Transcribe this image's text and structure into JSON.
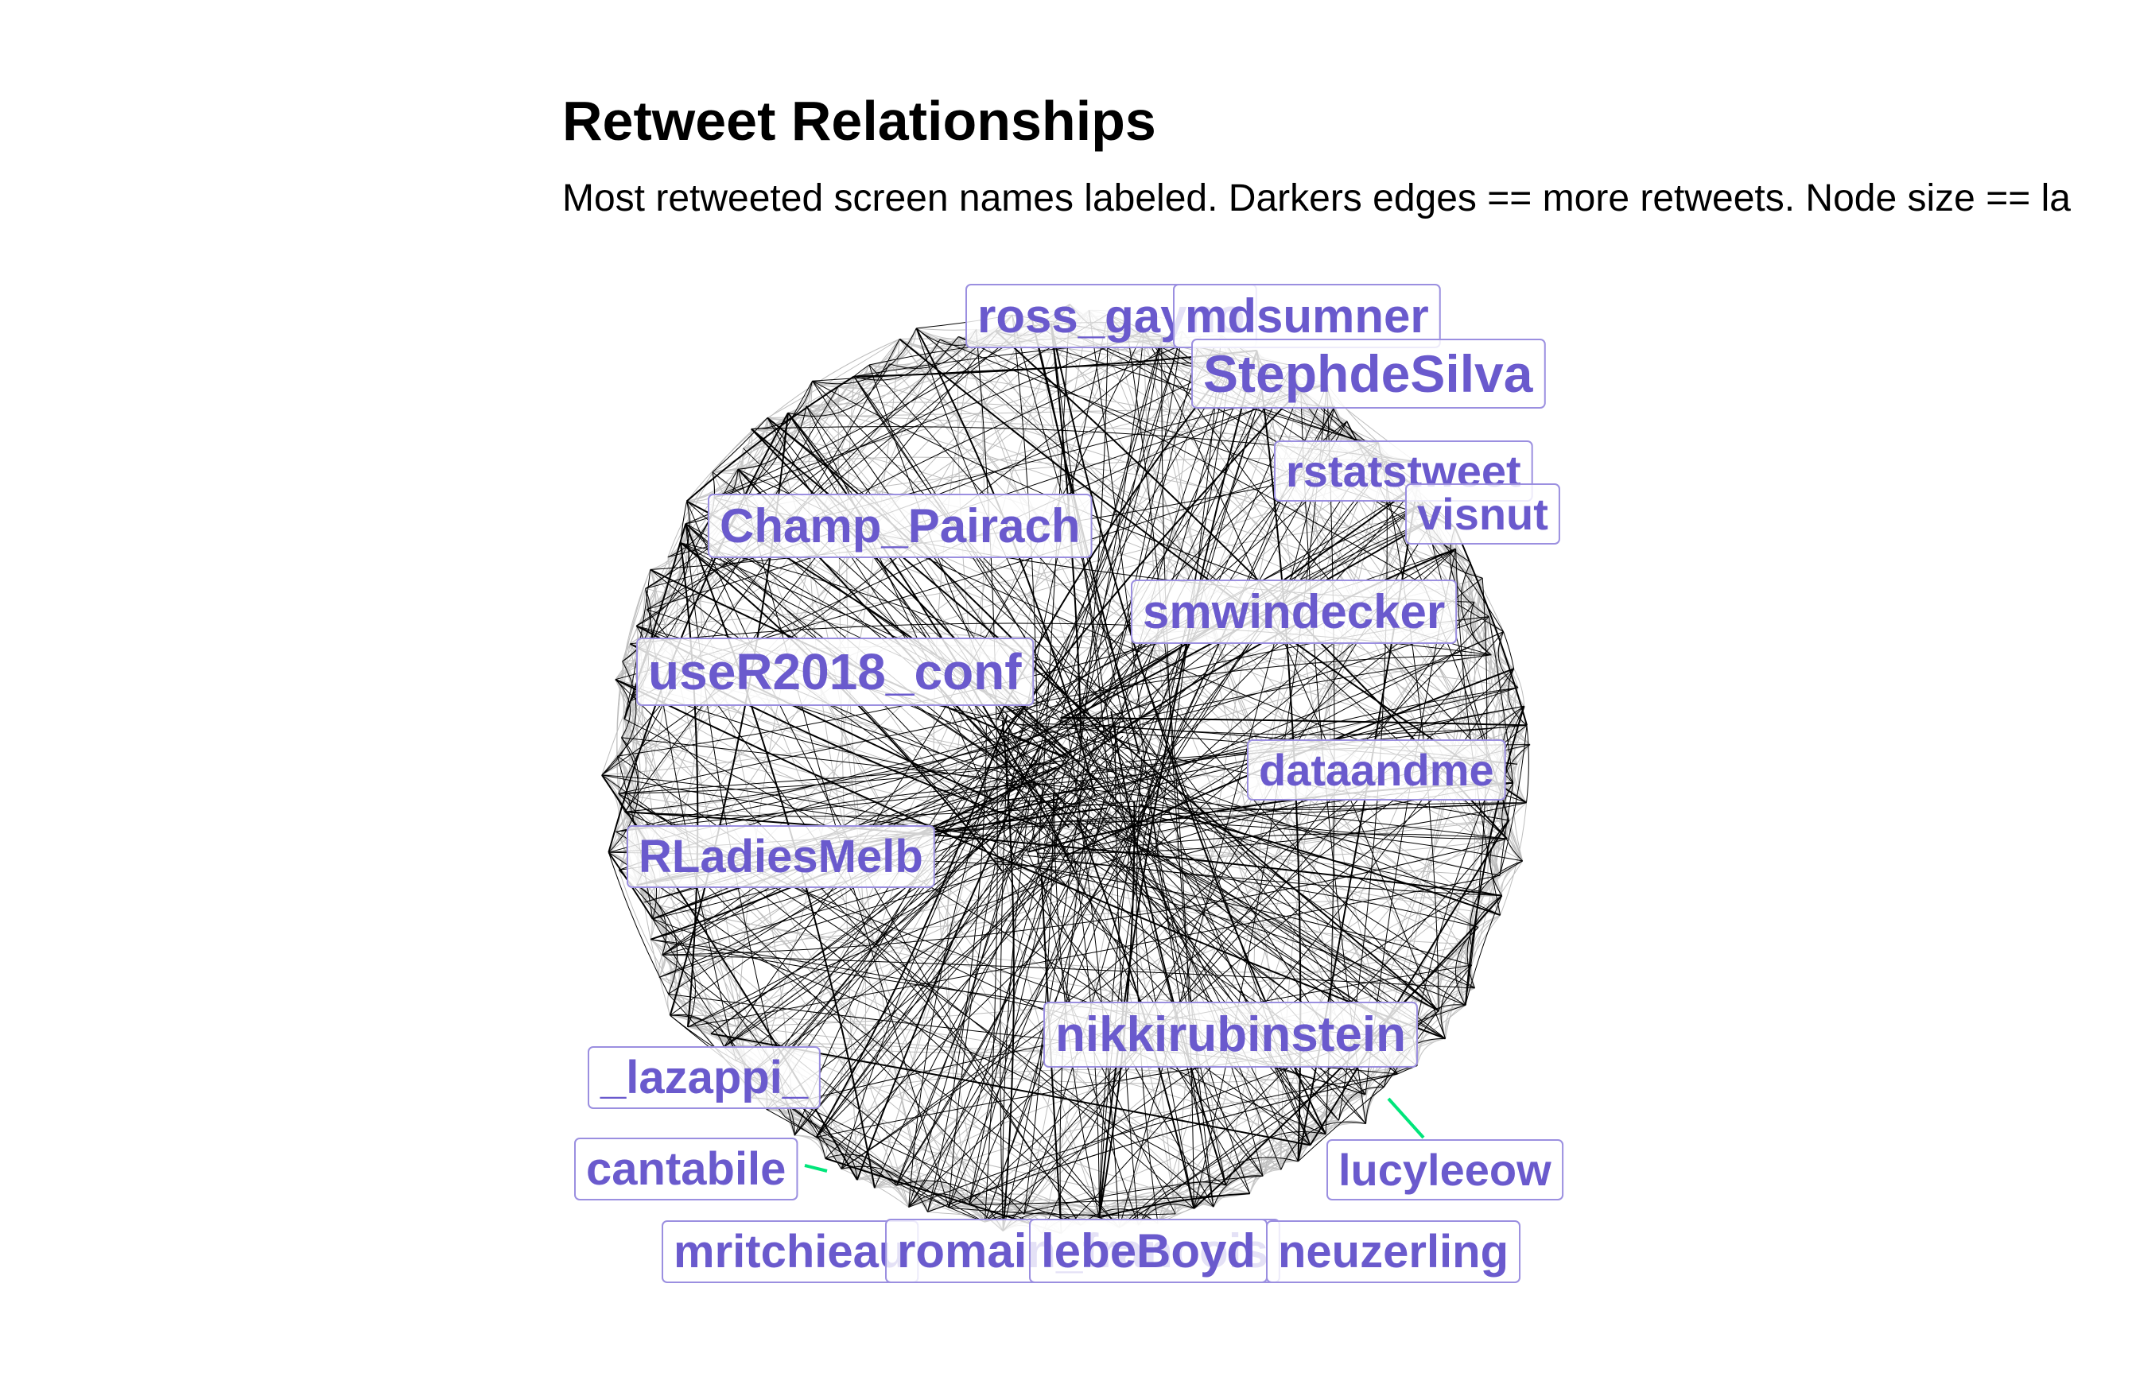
{
  "header": {
    "title": "Retweet Relationships",
    "subtitle": "Most retweeted screen names labeled. Darkers edges == more retweets. Node size == la"
  },
  "colors": {
    "label": "#6a5acd",
    "label_box_border": "#9b8fe0",
    "edge_strong": "#000000",
    "edge_weak": "#c8c8c8",
    "highlight_edge": "#00e57a"
  },
  "graph": {
    "layout": "circle",
    "labeled_nodes": [
      {
        "name": "ross_gayno"
      },
      {
        "name": "mdsumner"
      },
      {
        "name": "StephdeSilva"
      },
      {
        "name": "rstatstweet"
      },
      {
        "name": "visnut"
      },
      {
        "name": "Champ_Pairach"
      },
      {
        "name": "smwindecker"
      },
      {
        "name": "useR2018_conf"
      },
      {
        "name": "dataandme"
      },
      {
        "name": "RLadiesMelb"
      },
      {
        "name": "nikkirubinstein"
      },
      {
        "name": "_lazappi_"
      },
      {
        "name": "cantabile"
      },
      {
        "name": "lucyleeow"
      },
      {
        "name": "mritchieau"
      },
      {
        "name": "romain_francois"
      },
      {
        "name": "lebeBoyd"
      },
      {
        "name": "neuzerling"
      }
    ]
  }
}
